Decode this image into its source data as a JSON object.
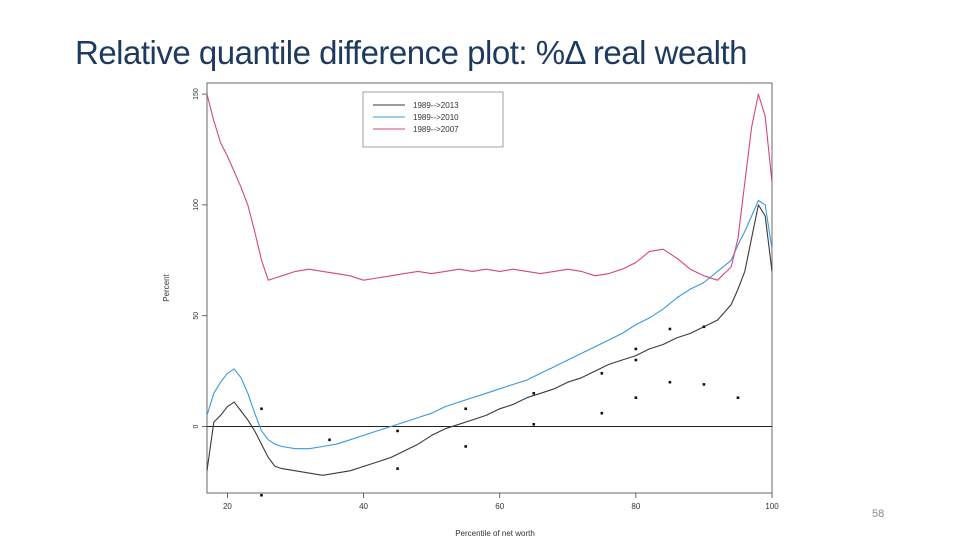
{
  "slide": {
    "title": "Relative quantile difference plot: %Δ real wealth",
    "page_number": "58"
  },
  "chart_data": {
    "type": "line",
    "xlabel": "Percentile of net worth",
    "ylabel": "Percent",
    "xlim": [
      17,
      100
    ],
    "ylim": [
      -30,
      155
    ],
    "x_ticks": [
      20,
      40,
      60,
      80,
      100
    ],
    "y_ticks": [
      0,
      50,
      100,
      150
    ],
    "grid": false,
    "legend_position": "top-center",
    "reference_line_y": 0,
    "series": [
      {
        "name": "1989-->2013",
        "color": "#3a3a3a",
        "x": [
          17,
          18,
          19,
          20,
          21,
          22,
          23,
          24,
          25,
          26,
          27,
          28,
          30,
          32,
          34,
          36,
          38,
          40,
          42,
          44,
          46,
          48,
          50,
          52,
          54,
          56,
          58,
          60,
          62,
          64,
          66,
          68,
          70,
          72,
          74,
          76,
          78,
          80,
          82,
          84,
          86,
          88,
          90,
          92,
          94,
          95,
          96,
          97,
          98,
          99,
          100
        ],
        "y": [
          -20,
          2,
          5,
          9,
          11,
          7,
          3,
          -2,
          -8,
          -14,
          -18,
          -19,
          -20,
          -21,
          -22,
          -21,
          -20,
          -18,
          -16,
          -14,
          -11,
          -8,
          -4,
          -1,
          1,
          3,
          5,
          8,
          10,
          13,
          15,
          17,
          20,
          22,
          25,
          28,
          30,
          32,
          35,
          37,
          40,
          42,
          45,
          48,
          55,
          62,
          70,
          85,
          100,
          95,
          70
        ]
      },
      {
        "name": "1989-->2010",
        "color": "#3a9ad9",
        "x": [
          17,
          18,
          19,
          20,
          21,
          22,
          23,
          24,
          25,
          26,
          27,
          28,
          30,
          32,
          34,
          36,
          38,
          40,
          42,
          44,
          46,
          48,
          50,
          52,
          54,
          56,
          58,
          60,
          62,
          64,
          66,
          68,
          70,
          72,
          74,
          76,
          78,
          80,
          82,
          84,
          86,
          88,
          90,
          92,
          94,
          95,
          96,
          97,
          98,
          99,
          100
        ],
        "y": [
          5,
          15,
          20,
          24,
          26,
          22,
          15,
          6,
          -2,
          -6,
          -8,
          -9,
          -10,
          -10,
          -9,
          -8,
          -6,
          -4,
          -2,
          0,
          2,
          4,
          6,
          9,
          11,
          13,
          15,
          17,
          19,
          21,
          24,
          27,
          30,
          33,
          36,
          39,
          42,
          46,
          49,
          53,
          58,
          62,
          65,
          70,
          75,
          82,
          88,
          95,
          102,
          100,
          80
        ]
      },
      {
        "name": "1989-->2007",
        "color": "#d6457f",
        "x": [
          17,
          18,
          19,
          20,
          21,
          22,
          23,
          24,
          25,
          26,
          27,
          28,
          30,
          32,
          34,
          36,
          38,
          40,
          42,
          44,
          46,
          48,
          50,
          52,
          54,
          56,
          58,
          60,
          62,
          64,
          66,
          68,
          70,
          72,
          74,
          76,
          78,
          80,
          82,
          84,
          86,
          88,
          90,
          92,
          94,
          95,
          96,
          97,
          98,
          99,
          100
        ],
        "y": [
          150,
          138,
          128,
          122,
          115,
          108,
          100,
          88,
          75,
          66,
          67,
          68,
          70,
          71,
          70,
          69,
          68,
          66,
          67,
          68,
          69,
          70,
          69,
          70,
          71,
          70,
          71,
          70,
          71,
          70,
          69,
          70,
          71,
          70,
          68,
          69,
          71,
          74,
          79,
          80,
          76,
          71,
          68,
          66,
          72,
          85,
          110,
          135,
          150,
          140,
          110
        ]
      }
    ],
    "scatter_points": {
      "x": [
        25,
        25,
        35,
        45,
        45,
        55,
        55,
        65,
        65,
        75,
        75,
        80,
        80,
        80,
        85,
        85,
        90,
        90,
        95
      ],
      "y": [
        8,
        -31,
        -6,
        -2,
        -19,
        8,
        -9,
        15,
        1,
        24,
        6,
        30,
        13,
        35,
        20,
        44,
        19,
        45,
        13
      ]
    }
  }
}
